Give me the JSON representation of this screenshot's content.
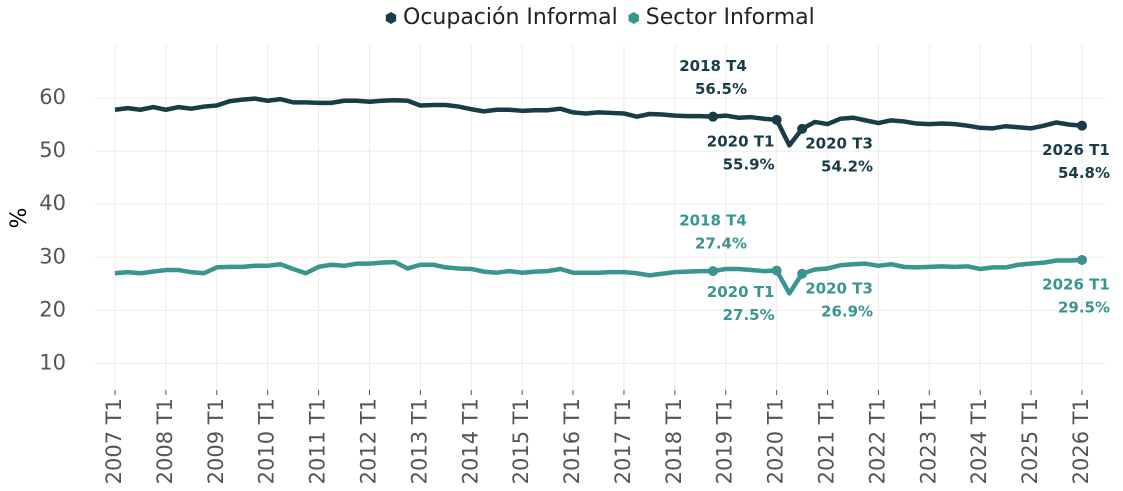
{
  "chart_data": {
    "type": "line",
    "ylabel": "%",
    "ylim": [
      5,
      70
    ],
    "yticks": [
      10,
      20,
      30,
      40,
      50,
      60
    ],
    "grid": true,
    "legend": "top",
    "categories": [
      "2007 T1",
      null,
      null,
      null,
      "2008 T1",
      null,
      null,
      null,
      "2009 T1",
      null,
      null,
      null,
      "2010 T1",
      null,
      null,
      null,
      "2011 T1",
      null,
      null,
      null,
      "2012 T1",
      null,
      null,
      null,
      "2013 T1",
      null,
      null,
      null,
      "2014 T1",
      null,
      null,
      null,
      "2015 T1",
      null,
      null,
      null,
      "2016 T1",
      null,
      null,
      null,
      "2017 T1",
      null,
      null,
      null,
      "2018 T1",
      null,
      null,
      null,
      "2019 T1",
      null,
      null,
      null,
      "2020 T1",
      null,
      null,
      null,
      "2021 T1",
      null,
      null,
      null,
      "2022 T1",
      null,
      null,
      null,
      "2023 T1",
      null,
      null,
      null,
      "2024 T1",
      null,
      null,
      null,
      "2025 T1",
      null,
      null,
      null,
      "2026 T1"
    ],
    "series": [
      {
        "name": "Ocupación Informal",
        "color": "#183c48",
        "values": [
          57.8,
          58.1,
          57.8,
          58.3,
          57.8,
          58.3,
          58.0,
          58.4,
          58.6,
          59.4,
          59.7,
          59.9,
          59.5,
          59.8,
          59.2,
          59.2,
          59.1,
          59.1,
          59.5,
          59.5,
          59.3,
          59.5,
          59.6,
          59.5,
          58.6,
          58.7,
          58.7,
          58.4,
          57.9,
          57.5,
          57.8,
          57.8,
          57.6,
          57.7,
          57.7,
          58.0,
          57.3,
          57.1,
          57.3,
          57.2,
          57.1,
          56.5,
          57.0,
          56.9,
          56.7,
          56.6,
          56.6,
          56.5,
          56.7,
          56.3,
          56.4,
          56.1,
          55.9,
          51.1,
          54.2,
          55.5,
          55.1,
          56.1,
          56.3,
          55.8,
          55.3,
          55.8,
          55.6,
          55.2,
          55.1,
          55.2,
          55.1,
          54.8,
          54.4,
          54.3,
          54.7,
          54.5,
          54.3,
          54.8,
          55.4,
          55.0,
          54.8
        ],
        "annotations": [
          {
            "x": "2018 T4",
            "value": 56.5,
            "label": "56.5%"
          },
          {
            "x": "2020 T1",
            "value": 55.9,
            "label": "55.9%"
          },
          {
            "x": "2020 T3",
            "value": 54.2,
            "label": "54.2%"
          },
          {
            "x": "2026 T1",
            "value": 54.8,
            "label": "54.8%"
          }
        ]
      },
      {
        "name": "Sector Informal",
        "color": "#3a9590",
        "values": [
          27.0,
          27.2,
          27.0,
          27.3,
          27.6,
          27.6,
          27.2,
          27.0,
          28.1,
          28.2,
          28.2,
          28.4,
          28.4,
          28.7,
          27.8,
          27.0,
          28.2,
          28.6,
          28.4,
          28.8,
          28.8,
          29.0,
          29.1,
          27.9,
          28.6,
          28.6,
          28.1,
          27.9,
          27.8,
          27.3,
          27.1,
          27.4,
          27.1,
          27.3,
          27.4,
          27.8,
          27.1,
          27.1,
          27.1,
          27.2,
          27.2,
          27.0,
          26.6,
          26.9,
          27.2,
          27.3,
          27.4,
          27.4,
          27.8,
          27.8,
          27.6,
          27.4,
          27.5,
          23.2,
          26.9,
          27.7,
          27.9,
          28.5,
          28.7,
          28.8,
          28.4,
          28.7,
          28.2,
          28.1,
          28.2,
          28.3,
          28.2,
          28.3,
          27.8,
          28.1,
          28.1,
          28.6,
          28.8,
          29.0,
          29.4,
          29.4,
          29.5
        ],
        "annotations": [
          {
            "x": "2018 T4",
            "value": 27.4,
            "label": "27.4%"
          },
          {
            "x": "2020 T1",
            "value": 27.5,
            "label": "27.5%"
          },
          {
            "x": "2020 T3",
            "value": 26.9,
            "label": "26.9%"
          },
          {
            "x": "2026 T1",
            "value": 29.5,
            "label": "29.5%"
          }
        ]
      }
    ]
  }
}
